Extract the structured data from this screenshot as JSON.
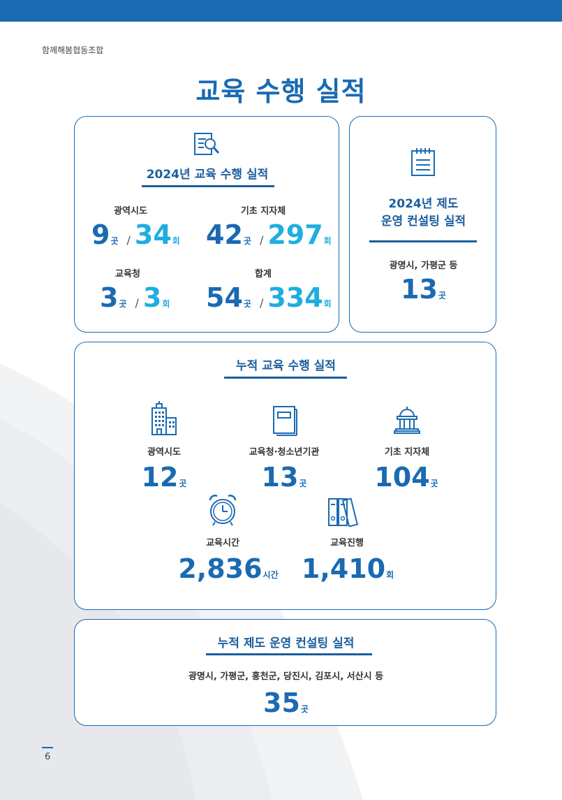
{
  "header": {
    "org_name": "함께해봄협동조합"
  },
  "page_title": "교육 수행 실적",
  "card_2024_education": {
    "title": "2024년 교육 수행 실적",
    "icon": "document-search-icon",
    "metrics": [
      {
        "label": "광역시도",
        "places": "9",
        "places_unit": "곳",
        "sep": "/",
        "sessions": "34",
        "sessions_unit": "회"
      },
      {
        "label": "기초 지자체",
        "places": "42",
        "places_unit": "곳",
        "sep": "/",
        "sessions": "297",
        "sessions_unit": "회"
      },
      {
        "label": "교육청",
        "places": "3",
        "places_unit": "곳",
        "sep": "/",
        "sessions": "3",
        "sessions_unit": "회"
      },
      {
        "label": "합계",
        "places": "54",
        "places_unit": "곳",
        "sep": "/",
        "sessions": "334",
        "sessions_unit": "회"
      }
    ]
  },
  "card_2024_consulting": {
    "title_line1": "2024년 제도",
    "title_line2": "운영 컨설팅 실적",
    "icon": "notepad-icon",
    "label": "광명시, 가평군 등",
    "value": "13",
    "unit": "곳"
  },
  "card_cumulative_education": {
    "title": "누적 교육 수행 실적",
    "items": [
      {
        "label": "광역시도",
        "value": "12",
        "unit": "곳",
        "icon": "office-buildings-icon"
      },
      {
        "label": "교육청·청소년기관",
        "value": "13",
        "unit": "곳",
        "icon": "book-icon"
      },
      {
        "label": "기초 지자체",
        "value": "104",
        "unit": "곳",
        "icon": "government-building-icon"
      },
      {
        "label": "교육시간",
        "value": "2,836",
        "unit": "시간",
        "icon": "alarm-clock-icon"
      },
      {
        "label": "교육진행",
        "value": "1,410",
        "unit": "회",
        "icon": "binders-icon"
      }
    ]
  },
  "card_cumulative_consulting": {
    "title": "누적 제도 운영 컨설팅 실적",
    "label": "광명시, 가평군, 홍천군, 당진시, 김포시, 서산시 등",
    "value": "35",
    "unit": "곳"
  },
  "footer": {
    "page_number": "6"
  },
  "colors": {
    "primary": "#1a6ab2",
    "accent_cyan": "#1eaee0",
    "heading": "#1a5f9e"
  }
}
